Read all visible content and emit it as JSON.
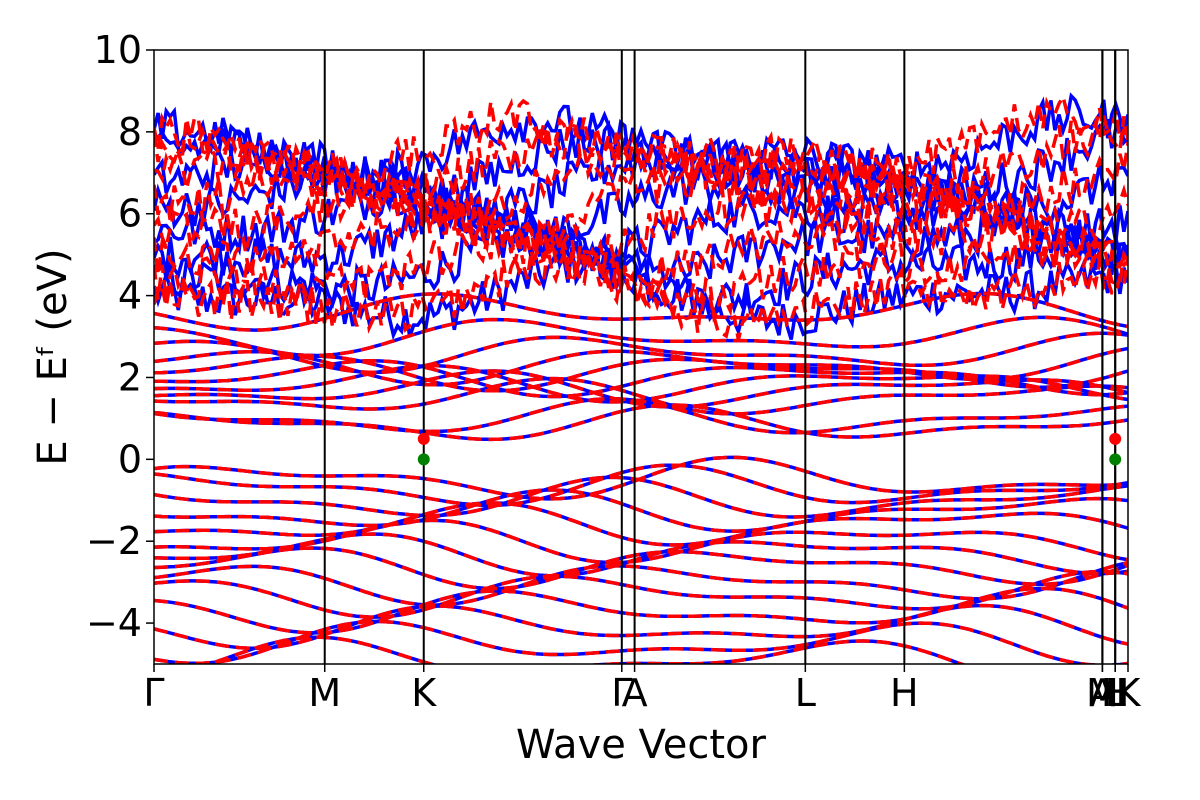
{
  "chart_data": {
    "type": "line",
    "title": "",
    "xlabel": "Wave Vector",
    "ylabel": "E − Eᶠ (eV)",
    "ylim": [
      -5,
      10
    ],
    "yticks": [
      -4,
      -2,
      0,
      2,
      4,
      6,
      8,
      10
    ],
    "ytick_labels": [
      "−4",
      "−2",
      "0",
      "2",
      "4",
      "6",
      "8",
      "10"
    ],
    "kpath": [
      {
        "label": "Γ",
        "k": 0.0
      },
      {
        "label": "M",
        "k": 1.0
      },
      {
        "label": "K",
        "k": 1.58
      },
      {
        "label": "Γ",
        "k": 2.74
      },
      {
        "label": "A",
        "k": 2.815
      },
      {
        "label": "L",
        "k": 3.815
      },
      {
        "label": "H",
        "k": 4.395
      },
      {
        "label": "A",
        "k": 5.555
      },
      {
        "label": "M",
        "k": 5.555
      },
      {
        "label": "L",
        "k": 5.63
      },
      {
        "label": "H",
        "k": 5.63
      },
      {
        "label": "K",
        "k": 5.705
      }
    ],
    "xlim": [
      0,
      5.705
    ],
    "series": [
      {
        "style": "solid",
        "color": "#0000ff"
      },
      {
        "style": "dashed",
        "color": "#ff0000"
      }
    ],
    "band_edges": {
      "vbm": {
        "k": 1.58,
        "E": 0.0,
        "color": "#008000"
      },
      "cbm": {
        "k": 1.58,
        "E": 0.5,
        "color": "#ff0000"
      }
    },
    "conduction_band_levels": [
      0.85,
      1.0,
      1.5,
      1.7,
      1.85,
      2.0,
      2.15,
      2.3,
      2.6,
      3.0,
      3.6
    ],
    "valence_band_levels": [
      -0.5,
      -0.7,
      -1.0,
      -1.3,
      -1.6,
      -2.0,
      -2.3,
      -2.6,
      -3.0,
      -3.3,
      -3.7,
      -4.1,
      -4.5,
      -4.9
    ],
    "upper_band_levels": [
      4.0,
      4.6,
      5.2,
      5.8,
      6.3,
      6.8,
      7.2,
      7.6
    ],
    "colors": {
      "spin_up": "#0000ff",
      "spin_down": "#ff0000",
      "vbm_marker": "#008000",
      "cbm_marker": "#ff0000"
    }
  }
}
